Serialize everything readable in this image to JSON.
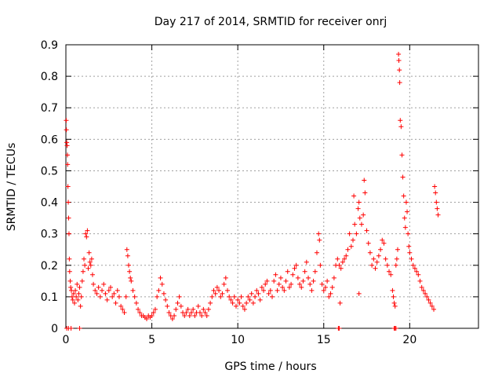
{
  "chart_data": {
    "type": "scatter",
    "title": "Day 217 of 2014, SRMTID for receiver onrj",
    "xlabel": "GPS time / hours",
    "ylabel": "SRMTID / TECUs",
    "xlim": [
      0,
      24
    ],
    "ylim": [
      0,
      0.9
    ],
    "xticks": [
      0,
      5,
      10,
      15,
      20
    ],
    "yticks": [
      0,
      0.1,
      0.2,
      0.3,
      0.4,
      0.5,
      0.6,
      0.7,
      0.8,
      0.9
    ],
    "xtick_labels": [
      "0",
      "5",
      "10",
      "15",
      "20"
    ],
    "ytick_labels": [
      "0",
      "0.1",
      "0.2",
      "0.3",
      "0.4",
      "0.5",
      "0.6",
      "0.7",
      "0.8",
      "0.9"
    ],
    "grid": true,
    "marker": "+",
    "marker_color": "#ff0000",
    "series": [
      {
        "name": "SRMTID",
        "points": [
          [
            0.02,
            0.66
          ],
          [
            0.03,
            0.63
          ],
          [
            0.05,
            0.59
          ],
          [
            0.07,
            0.58
          ],
          [
            0.09,
            0.55
          ],
          [
            0.1,
            0.52
          ],
          [
            0.12,
            0.45
          ],
          [
            0.14,
            0.4
          ],
          [
            0.16,
            0.35
          ],
          [
            0.18,
            0.3
          ],
          [
            0.2,
            0.22
          ],
          [
            0.22,
            0.18
          ],
          [
            0.25,
            0.15
          ],
          [
            0.28,
            0.13
          ],
          [
            0.32,
            0.12
          ],
          [
            0.36,
            0.1
          ],
          [
            0.4,
            0.09
          ],
          [
            0.45,
            0.11
          ],
          [
            0.5,
            0.08
          ],
          [
            0.55,
            0.12
          ],
          [
            0.6,
            0.1
          ],
          [
            0.65,
            0.14
          ],
          [
            0.7,
            0.09
          ],
          [
            0.75,
            0.11
          ],
          [
            0.8,
            0.13
          ],
          [
            0.85,
            0.07
          ],
          [
            0.9,
            0.1
          ],
          [
            0.95,
            0.15
          ],
          [
            1.0,
            0.18
          ],
          [
            1.05,
            0.22
          ],
          [
            1.1,
            0.2
          ],
          [
            1.15,
            0.3
          ],
          [
            1.2,
            0.29
          ],
          [
            1.25,
            0.31
          ],
          [
            1.3,
            0.19
          ],
          [
            1.35,
            0.24
          ],
          [
            1.4,
            0.21
          ],
          [
            1.45,
            0.2
          ],
          [
            1.5,
            0.22
          ],
          [
            1.55,
            0.17
          ],
          [
            1.6,
            0.14
          ],
          [
            1.7,
            0.12
          ],
          [
            1.8,
            0.11
          ],
          [
            1.9,
            0.13
          ],
          [
            2.0,
            0.1
          ],
          [
            2.1,
            0.12
          ],
          [
            2.2,
            0.14
          ],
          [
            2.3,
            0.11
          ],
          [
            2.4,
            0.09
          ],
          [
            2.5,
            0.12
          ],
          [
            2.6,
            0.13
          ],
          [
            2.7,
            0.1
          ],
          [
            2.8,
            0.11
          ],
          [
            2.9,
            0.08
          ],
          [
            3.0,
            0.12
          ],
          [
            3.1,
            0.1
          ],
          [
            3.2,
            0.07
          ],
          [
            3.3,
            0.06
          ],
          [
            3.4,
            0.05
          ],
          [
            3.5,
            0.1
          ],
          [
            3.55,
            0.25
          ],
          [
            3.6,
            0.23
          ],
          [
            3.65,
            0.2
          ],
          [
            3.7,
            0.18
          ],
          [
            3.75,
            0.16
          ],
          [
            3.8,
            0.15
          ],
          [
            3.9,
            0.12
          ],
          [
            4.0,
            0.1
          ],
          [
            4.1,
            0.08
          ],
          [
            4.2,
            0.06
          ],
          [
            4.3,
            0.05
          ],
          [
            4.4,
            0.04
          ],
          [
            4.5,
            0.04
          ],
          [
            4.6,
            0.035
          ],
          [
            4.7,
            0.03
          ],
          [
            4.8,
            0.04
          ],
          [
            4.9,
            0.035
          ],
          [
            5.0,
            0.04
          ],
          [
            5.1,
            0.05
          ],
          [
            5.2,
            0.06
          ],
          [
            5.3,
            0.1
          ],
          [
            5.4,
            0.12
          ],
          [
            5.5,
            0.16
          ],
          [
            5.6,
            0.14
          ],
          [
            5.7,
            0.11
          ],
          [
            5.8,
            0.09
          ],
          [
            5.9,
            0.07
          ],
          [
            6.0,
            0.05
          ],
          [
            6.1,
            0.04
          ],
          [
            6.2,
            0.03
          ],
          [
            6.3,
            0.04
          ],
          [
            6.4,
            0.06
          ],
          [
            6.5,
            0.08
          ],
          [
            6.6,
            0.1
          ],
          [
            6.7,
            0.07
          ],
          [
            6.8,
            0.05
          ],
          [
            6.9,
            0.04
          ],
          [
            7.0,
            0.05
          ],
          [
            7.1,
            0.06
          ],
          [
            7.2,
            0.04
          ],
          [
            7.3,
            0.05
          ],
          [
            7.4,
            0.06
          ],
          [
            7.5,
            0.04
          ],
          [
            7.6,
            0.05
          ],
          [
            7.7,
            0.07
          ],
          [
            7.8,
            0.05
          ],
          [
            7.9,
            0.04
          ],
          [
            8.0,
            0.06
          ],
          [
            8.1,
            0.05
          ],
          [
            8.2,
            0.04
          ],
          [
            8.3,
            0.06
          ],
          [
            8.4,
            0.08
          ],
          [
            8.5,
            0.1
          ],
          [
            8.6,
            0.12
          ],
          [
            8.7,
            0.11
          ],
          [
            8.8,
            0.13
          ],
          [
            8.9,
            0.12
          ],
          [
            9.0,
            0.1
          ],
          [
            9.1,
            0.11
          ],
          [
            9.2,
            0.14
          ],
          [
            9.3,
            0.16
          ],
          [
            9.4,
            0.12
          ],
          [
            9.5,
            0.1
          ],
          [
            9.6,
            0.09
          ],
          [
            9.7,
            0.08
          ],
          [
            9.8,
            0.1
          ],
          [
            9.9,
            0.07
          ],
          [
            10.0,
            0.09
          ],
          [
            10.1,
            0.08
          ],
          [
            10.2,
            0.1
          ],
          [
            10.3,
            0.07
          ],
          [
            10.4,
            0.06
          ],
          [
            10.5,
            0.08
          ],
          [
            10.6,
            0.1
          ],
          [
            10.7,
            0.09
          ],
          [
            10.8,
            0.11
          ],
          [
            10.9,
            0.08
          ],
          [
            11.0,
            0.1
          ],
          [
            11.1,
            0.12
          ],
          [
            11.2,
            0.11
          ],
          [
            11.3,
            0.09
          ],
          [
            11.4,
            0.13
          ],
          [
            11.5,
            0.12
          ],
          [
            11.6,
            0.14
          ],
          [
            11.7,
            0.15
          ],
          [
            11.8,
            0.11
          ],
          [
            11.9,
            0.12
          ],
          [
            12.0,
            0.1
          ],
          [
            12.1,
            0.15
          ],
          [
            12.2,
            0.17
          ],
          [
            12.3,
            0.12
          ],
          [
            12.4,
            0.14
          ],
          [
            12.5,
            0.16
          ],
          [
            12.6,
            0.13
          ],
          [
            12.7,
            0.12
          ],
          [
            12.8,
            0.15
          ],
          [
            12.9,
            0.18
          ],
          [
            13.0,
            0.13
          ],
          [
            13.1,
            0.14
          ],
          [
            13.2,
            0.17
          ],
          [
            13.3,
            0.19
          ],
          [
            13.4,
            0.2
          ],
          [
            13.5,
            0.16
          ],
          [
            13.6,
            0.14
          ],
          [
            13.7,
            0.13
          ],
          [
            13.8,
            0.15
          ],
          [
            13.9,
            0.18
          ],
          [
            14.0,
            0.21
          ],
          [
            14.1,
            0.16
          ],
          [
            14.2,
            0.14
          ],
          [
            14.3,
            0.12
          ],
          [
            14.4,
            0.15
          ],
          [
            14.5,
            0.18
          ],
          [
            14.6,
            0.24
          ],
          [
            14.7,
            0.3
          ],
          [
            14.75,
            0.28
          ],
          [
            14.8,
            0.2
          ],
          [
            14.9,
            0.14
          ],
          [
            15.0,
            0.12
          ],
          [
            15.1,
            0.13
          ],
          [
            15.2,
            0.15
          ],
          [
            15.3,
            0.1
          ],
          [
            15.4,
            0.11
          ],
          [
            15.5,
            0.13
          ],
          [
            15.6,
            0.16
          ],
          [
            15.7,
            0.2
          ],
          [
            15.8,
            0.22
          ],
          [
            15.9,
            0.2
          ],
          [
            16.0,
            0.19
          ],
          [
            16.1,
            0.21
          ],
          [
            16.2,
            0.22
          ],
          [
            16.3,
            0.23
          ],
          [
            16.4,
            0.25
          ],
          [
            16.5,
            0.3
          ],
          [
            16.6,
            0.26
          ],
          [
            16.7,
            0.28
          ],
          [
            16.75,
            0.42
          ],
          [
            16.8,
            0.33
          ],
          [
            16.9,
            0.3
          ],
          [
            17.0,
            0.38
          ],
          [
            17.05,
            0.4
          ],
          [
            17.1,
            0.35
          ],
          [
            17.2,
            0.33
          ],
          [
            17.3,
            0.36
          ],
          [
            17.35,
            0.47
          ],
          [
            17.4,
            0.43
          ],
          [
            17.5,
            0.31
          ],
          [
            17.6,
            0.27
          ],
          [
            17.7,
            0.24
          ],
          [
            17.8,
            0.2
          ],
          [
            17.9,
            0.22
          ],
          [
            18.0,
            0.19
          ],
          [
            18.1,
            0.21
          ],
          [
            18.2,
            0.23
          ],
          [
            18.3,
            0.25
          ],
          [
            18.4,
            0.28
          ],
          [
            18.5,
            0.27
          ],
          [
            18.6,
            0.22
          ],
          [
            18.7,
            0.2
          ],
          [
            18.8,
            0.18
          ],
          [
            18.9,
            0.17
          ],
          [
            19.0,
            0.12
          ],
          [
            19.05,
            0.1
          ],
          [
            19.1,
            0.08
          ],
          [
            19.2,
            0.2
          ],
          [
            19.25,
            0.22
          ],
          [
            19.3,
            0.25
          ],
          [
            19.35,
            0.87
          ],
          [
            19.37,
            0.85
          ],
          [
            19.4,
            0.82
          ],
          [
            19.42,
            0.78
          ],
          [
            19.45,
            0.66
          ],
          [
            19.5,
            0.64
          ],
          [
            19.55,
            0.55
          ],
          [
            19.6,
            0.48
          ],
          [
            19.65,
            0.42
          ],
          [
            19.7,
            0.35
          ],
          [
            19.75,
            0.32
          ],
          [
            19.8,
            0.4
          ],
          [
            19.85,
            0.37
          ],
          [
            19.9,
            0.3
          ],
          [
            19.95,
            0.26
          ],
          [
            20.0,
            0.24
          ],
          [
            20.1,
            0.22
          ],
          [
            20.2,
            0.2
          ],
          [
            20.3,
            0.19
          ],
          [
            20.4,
            0.18
          ],
          [
            20.5,
            0.17
          ],
          [
            20.6,
            0.15
          ],
          [
            20.7,
            0.13
          ],
          [
            20.8,
            0.12
          ],
          [
            20.9,
            0.11
          ],
          [
            21.0,
            0.1
          ],
          [
            21.1,
            0.09
          ],
          [
            21.2,
            0.08
          ],
          [
            21.3,
            0.07
          ],
          [
            21.4,
            0.06
          ],
          [
            21.45,
            0.45
          ],
          [
            21.5,
            0.43
          ],
          [
            21.55,
            0.4
          ],
          [
            21.6,
            0.38
          ],
          [
            21.65,
            0.36
          ],
          [
            0.05,
            0.0
          ],
          [
            0.15,
            0.0
          ],
          [
            0.3,
            0.0
          ],
          [
            0.8,
            0.0
          ],
          [
            15.85,
            0.0
          ],
          [
            15.9,
            0.0
          ],
          [
            19.1,
            0.0
          ],
          [
            19.15,
            0.0
          ],
          [
            19.2,
            0.0
          ],
          [
            15.95,
            0.08
          ],
          [
            17.05,
            0.11
          ],
          [
            19.15,
            0.07
          ]
        ]
      }
    ]
  }
}
